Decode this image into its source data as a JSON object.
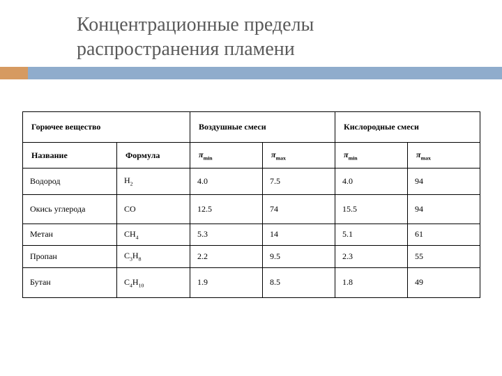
{
  "title_line1": "Концентрационные пределы",
  "title_line2": "распространения пламени",
  "headers": {
    "fuel": "Горючее вещество",
    "air_mix": "Воздушные смеси",
    "oxy_mix": "Кислородные смеси",
    "name": "Название",
    "formula": "Формула"
  },
  "pi_labels": {
    "min_sym": "π",
    "min_sub": "min",
    "max_sym": "π",
    "max_sub": "max"
  },
  "rows": [
    {
      "name": "Водород",
      "formula_html": "H<sub>2</sub>",
      "air_min": "4.0",
      "air_max": "7.5",
      "oxy_min": "4.0",
      "oxy_max": "94",
      "cls": ""
    },
    {
      "name": "Окись углерода",
      "formula_html": "CO",
      "air_min": "12.5",
      "air_max": "74",
      "oxy_min": "15.5",
      "oxy_max": "94",
      "cls": "tall"
    },
    {
      "name": "Метан",
      "formula_html": "CH<sub>4</sub>",
      "air_min": "5.3",
      "air_max": "14",
      "oxy_min": "5.1",
      "oxy_max": "61",
      "cls": "tight"
    },
    {
      "name": "Пропан",
      "formula_html": "C<sub>3</sub>H<sub>8</sub>",
      "air_min": "2.2",
      "air_max": "9.5",
      "oxy_min": "2.3",
      "oxy_max": "55",
      "cls": "tight"
    },
    {
      "name": "Бутан",
      "formula_html": "C<sub>4</sub>H<sub>10</sub>",
      "air_min": "1.9",
      "air_max": "8.5",
      "oxy_min": "1.8",
      "oxy_max": "49",
      "cls": "tall"
    }
  ],
  "colors": {
    "bar_blue": "#8faccc",
    "bar_orange": "#d69a61",
    "title_color": "#5a5a5a",
    "border": "#000000",
    "bg": "#ffffff"
  },
  "typography": {
    "title_fontsize_pt": 21,
    "cell_fontsize_pt": 9,
    "header_fontsize_pt": 9,
    "font_family": "Times New Roman"
  }
}
